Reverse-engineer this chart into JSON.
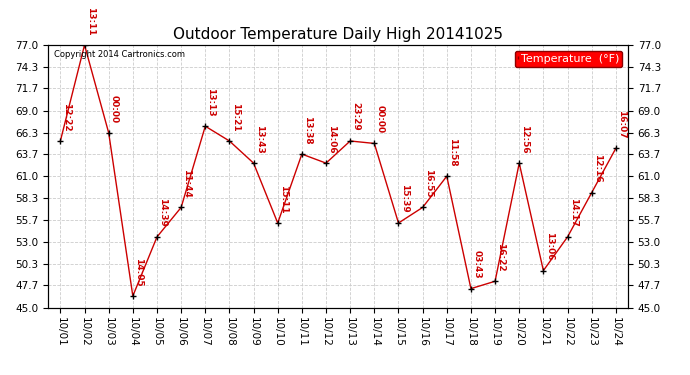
{
  "title": "Outdoor Temperature Daily High 20141025",
  "copyright_text": "Copyright 2014 Cartronics.com",
  "legend_label": "Temperature  (°F)",
  "background_color": "#ffffff",
  "plot_bg_color": "#ffffff",
  "grid_color": "#cccccc",
  "line_color": "#cc0000",
  "marker_color": "#000000",
  "label_color": "#cc0000",
  "x_labels": [
    "10/01",
    "10/02",
    "10/03",
    "10/04",
    "10/05",
    "10/06",
    "10/07",
    "10/08",
    "10/09",
    "10/10",
    "10/11",
    "10/12",
    "10/13",
    "10/14",
    "10/15",
    "10/16",
    "10/17",
    "10/18",
    "10/19",
    "10/20",
    "10/21",
    "10/22",
    "10/23",
    "10/24"
  ],
  "y_values": [
    65.3,
    77.0,
    66.3,
    46.4,
    53.6,
    57.2,
    67.1,
    65.3,
    62.6,
    55.3,
    63.7,
    62.6,
    65.3,
    65.0,
    55.3,
    57.2,
    61.0,
    47.3,
    48.2,
    62.6,
    49.5,
    53.6,
    59.0,
    64.4
  ],
  "time_labels": [
    "12:22",
    "13:11",
    "00:00",
    "14:05",
    "14:39",
    "11:44",
    "13:13",
    "15:21",
    "13:43",
    "15:11",
    "13:38",
    "14:06",
    "23:29",
    "00:00",
    "15:39",
    "16:55",
    "11:58",
    "03:43",
    "16:22",
    "12:56",
    "13:06",
    "14:17",
    "12:16",
    "16:07"
  ],
  "ylim_min": 45.0,
  "ylim_max": 77.0,
  "yticks": [
    45.0,
    47.7,
    50.3,
    53.0,
    55.7,
    58.3,
    61.0,
    63.7,
    66.3,
    69.0,
    71.7,
    74.3,
    77.0
  ],
  "title_fontsize": 11,
  "label_fontsize": 6.5,
  "tick_fontsize": 7.5,
  "legend_fontsize": 8
}
